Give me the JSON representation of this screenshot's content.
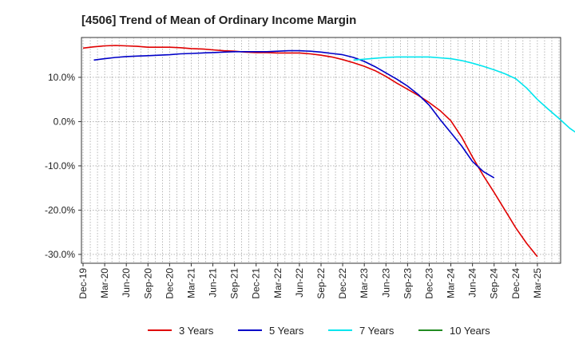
{
  "chart_data": {
    "type": "line",
    "title": "[4506]  Trend of Mean of Ordinary Income Margin",
    "xlabel": "",
    "ylabel": "",
    "x_tick_labels": [
      "Dec-19",
      "Mar-20",
      "Jun-20",
      "Sep-20",
      "Dec-20",
      "Mar-21",
      "Jun-21",
      "Sep-21",
      "Dec-21",
      "Mar-22",
      "Jun-22",
      "Sep-22",
      "Dec-22",
      "Mar-23",
      "Jun-23",
      "Sep-23",
      "Dec-23",
      "Mar-24",
      "Jun-24",
      "Sep-24",
      "Dec-24",
      "Mar-25"
    ],
    "y_ticks": [
      10,
      0,
      -10,
      -20,
      -30
    ],
    "y_tick_labels": [
      "10.0%",
      "0.0%",
      "-10.0%",
      "-20.0%",
      "-30.0%"
    ],
    "ylim": [
      -32,
      19
    ],
    "grid": true,
    "legend_position": "bottom",
    "series": [
      {
        "name": "3 Years",
        "color": "#e00000",
        "values": [
          16.6,
          16.9,
          17.1,
          17.2,
          17.1,
          17.0,
          16.8,
          16.8,
          16.8,
          16.7,
          16.5,
          16.4,
          16.2,
          16.0,
          15.9,
          15.7,
          15.6,
          15.6,
          15.5,
          15.5,
          15.5,
          15.3,
          15.0,
          14.6,
          14.0,
          13.3,
          12.5,
          11.5,
          10.2,
          8.7,
          7.3,
          5.9,
          4.3,
          2.5,
          0.2,
          -3.5,
          -8.0,
          -12.2,
          -16.0,
          -20.0,
          -24.0,
          -27.5,
          -30.5
        ]
      },
      {
        "name": "5 Years",
        "color": "#0000c8",
        "values": [
          null,
          13.9,
          14.2,
          14.5,
          14.7,
          14.8,
          14.9,
          15.0,
          15.1,
          15.3,
          15.4,
          15.5,
          15.6,
          15.7,
          15.8,
          15.8,
          15.8,
          15.8,
          15.9,
          16.0,
          16.0,
          15.9,
          15.7,
          15.4,
          15.1,
          14.5,
          13.6,
          12.4,
          11.0,
          9.6,
          8.0,
          6.1,
          3.7,
          0.5,
          -2.5,
          -5.5,
          -9.0,
          -11.3,
          -12.7
        ]
      },
      {
        "name": "7 Years",
        "color": "#00e5ee",
        "values": [
          null,
          null,
          null,
          null,
          null,
          null,
          null,
          null,
          null,
          null,
          null,
          null,
          null,
          null,
          null,
          null,
          null,
          null,
          null,
          null,
          null,
          null,
          null,
          null,
          null,
          13.9,
          14.1,
          14.3,
          14.5,
          14.6,
          14.6,
          14.6,
          14.6,
          14.4,
          14.2,
          13.8,
          13.2,
          12.5,
          11.7,
          10.8,
          9.7,
          7.6,
          5.0,
          2.8,
          0.7,
          -1.5,
          -3.2,
          -4.0
        ]
      },
      {
        "name": "10 Years",
        "color": "#228b22",
        "values": []
      }
    ]
  }
}
